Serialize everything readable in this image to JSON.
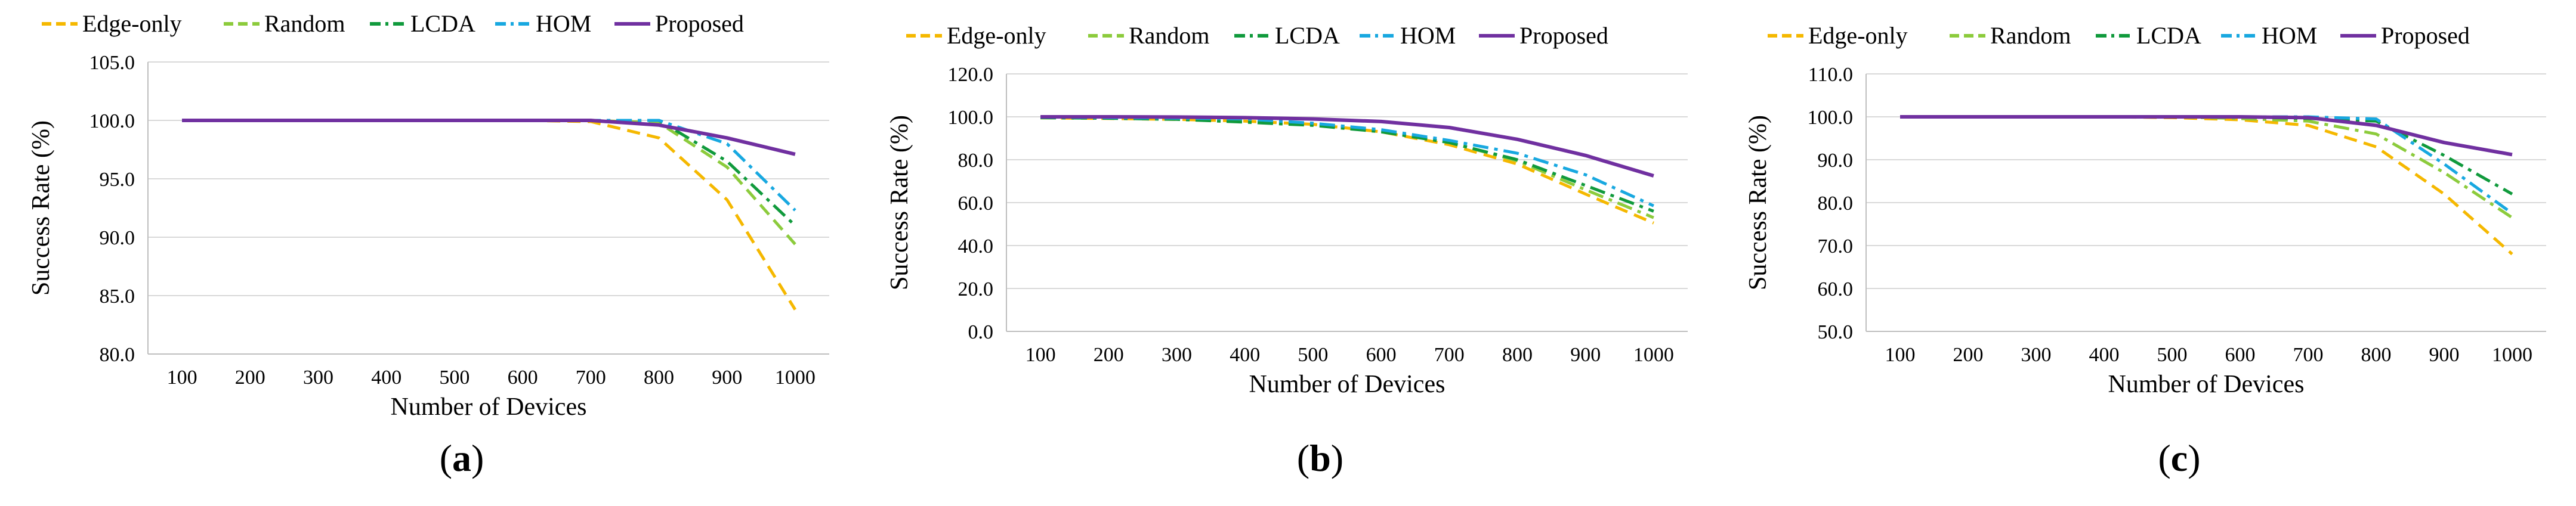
{
  "colors": {
    "edge_only": "#F5B800",
    "random": "#8CCB3C",
    "lcda": "#109A3C",
    "hom": "#18A8E0",
    "proposed": "#7030A0",
    "grid": "#d9d9d9",
    "axis": "#bfbfbf"
  },
  "chart_data": [
    {
      "type": "line",
      "panel_label": "a",
      "xlabel": "Number of Devices",
      "ylabel": "Success Rate (%)",
      "x": [
        100,
        200,
        300,
        400,
        500,
        600,
        700,
        800,
        900,
        1000
      ],
      "x_tick_labels": [
        "100",
        "200",
        "300",
        "400",
        "500",
        "600",
        "700",
        "800",
        "900",
        "1000"
      ],
      "ylim": [
        80,
        105
      ],
      "y_tick_labels": [
        "80.0",
        "85.0",
        "90.0",
        "95.0",
        "100.0",
        "105.0"
      ],
      "grid": "horizontal",
      "legend_position": "top",
      "series": [
        {
          "name": "Edge-only",
          "style": "dashed",
          "values": [
            100,
            100,
            100,
            100,
            100,
            100,
            99.9,
            98.5,
            93.2,
            83.8
          ]
        },
        {
          "name": "Random",
          "style": "dashed",
          "values": [
            100,
            100,
            100,
            100,
            100,
            100,
            100,
            99.8,
            96.0,
            89.4
          ]
        },
        {
          "name": "LCDA",
          "style": "dashdot",
          "values": [
            100,
            100,
            100,
            100,
            100,
            100,
            100,
            100,
            96.5,
            91.0
          ]
        },
        {
          "name": "HOM",
          "style": "dashdot",
          "values": [
            100,
            100,
            100,
            100,
            100,
            100,
            100,
            100,
            98.0,
            92.3
          ]
        },
        {
          "name": "Proposed",
          "style": "solid",
          "values": [
            100,
            100,
            100,
            100,
            100,
            100,
            100,
            99.6,
            98.5,
            97.1
          ]
        }
      ]
    },
    {
      "type": "line",
      "panel_label": "b",
      "xlabel": "Number of Devices",
      "ylabel": "Success Rate (%)",
      "x": [
        100,
        200,
        300,
        400,
        500,
        600,
        700,
        800,
        900,
        1000
      ],
      "x_tick_labels": [
        "100",
        "200",
        "300",
        "400",
        "500",
        "600",
        "700",
        "800",
        "900",
        "1000"
      ],
      "ylim": [
        0,
        120
      ],
      "y_tick_labels": [
        "0.0",
        "20.0",
        "40.0",
        "60.0",
        "80.0",
        "100.0",
        "120.0"
      ],
      "grid": "horizontal",
      "legend_position": "top",
      "series": [
        {
          "name": "Edge-only",
          "style": "dashed",
          "values": [
            99.5,
            99.2,
            98.8,
            98.0,
            96.5,
            93.0,
            87.0,
            78.0,
            64.0,
            50.5
          ]
        },
        {
          "name": "Random",
          "style": "dashdot",
          "values": [
            99.5,
            99.3,
            99.0,
            98.3,
            96.8,
            93.5,
            88.0,
            79.5,
            66.0,
            53.0
          ]
        },
        {
          "name": "LCDA",
          "style": "dashdot",
          "values": [
            99.6,
            99.3,
            98.8,
            97.5,
            96.0,
            93.0,
            88.0,
            80.0,
            68.0,
            56.0
          ]
        },
        {
          "name": "HOM",
          "style": "dashdot",
          "values": [
            99.8,
            99.6,
            99.4,
            99.0,
            97.0,
            94.0,
            89.0,
            83.0,
            73.0,
            58.5
          ]
        },
        {
          "name": "Proposed",
          "style": "solid",
          "values": [
            100,
            100,
            99.9,
            99.6,
            99.0,
            97.8,
            95.0,
            89.5,
            82.0,
            72.5
          ]
        }
      ]
    },
    {
      "type": "line",
      "panel_label": "c",
      "xlabel": "Number of Devices",
      "ylabel": "Success Rate (%)",
      "x": [
        100,
        200,
        300,
        400,
        500,
        600,
        700,
        800,
        900,
        1000
      ],
      "x_tick_labels": [
        "100",
        "200",
        "300",
        "400",
        "500",
        "600",
        "700",
        "800",
        "900",
        "1000"
      ],
      "ylim": [
        50,
        110
      ],
      "y_tick_labels": [
        "50.0",
        "60.0",
        "70.0",
        "80.0",
        "90.0",
        "100.0",
        "110.0"
      ],
      "grid": "horizontal",
      "legend_position": "top",
      "series": [
        {
          "name": "Edge-only",
          "style": "dashed",
          "values": [
            100,
            100,
            100,
            100,
            99.8,
            99.3,
            98.0,
            93.0,
            82.0,
            68.0
          ]
        },
        {
          "name": "Random",
          "style": "dashdot",
          "values": [
            100,
            100,
            100,
            100,
            100,
            99.6,
            99.0,
            96.0,
            87.0,
            76.5
          ]
        },
        {
          "name": "LCDA",
          "style": "dashdot",
          "values": [
            100,
            100,
            100,
            100,
            100,
            100,
            99.6,
            99.0,
            91.0,
            82.0
          ]
        },
        {
          "name": "HOM",
          "style": "dashdot",
          "values": [
            100,
            100,
            100,
            100,
            100,
            100,
            100,
            99.5,
            89.0,
            77.5
          ]
        },
        {
          "name": "Proposed",
          "style": "solid",
          "values": [
            100,
            100,
            100,
            100,
            100,
            100,
            99.8,
            98.0,
            94.0,
            91.2
          ]
        }
      ]
    }
  ]
}
